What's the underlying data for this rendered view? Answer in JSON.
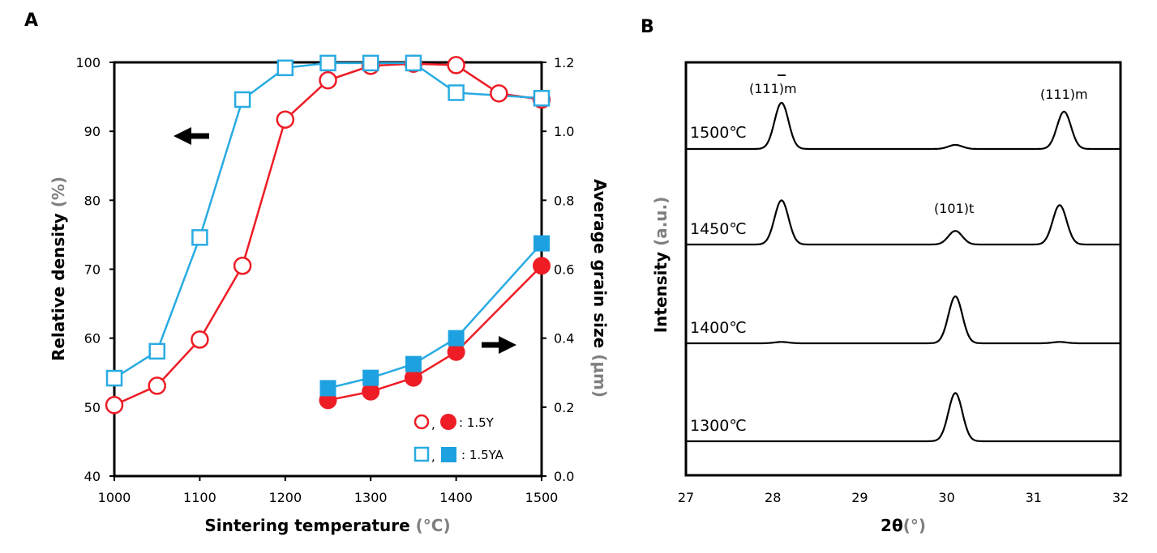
{
  "panels": {
    "a_label": "A",
    "b_label": "B"
  },
  "colors": {
    "red": "#ee1c25",
    "blue": "#29abe2",
    "square_fill": "#1da1e0",
    "axis": "#000000",
    "unit": "#7f7f7f"
  },
  "chart_data": [
    {
      "type": "line",
      "panel": "A",
      "xlabel": "Sintering temperature",
      "xlabel_unit": "(°C)",
      "ylabel": "Relative density",
      "ylabel_unit": "(%)",
      "y2label": "Average grain size",
      "y2label_unit": "(μm)",
      "xlim": [
        1000,
        1500
      ],
      "ylim": [
        40,
        100
      ],
      "y2lim": [
        0.0,
        1.2
      ],
      "x_ticks": [
        "1000",
        "1100",
        "1200",
        "1300",
        "1400",
        "1500"
      ],
      "y_ticks": [
        "40",
        "50",
        "60",
        "70",
        "80",
        "90",
        "100"
      ],
      "y2_ticks": [
        "0.0",
        "0.2",
        "0.4",
        "0.6",
        "0.8",
        "1.0",
        "1.2"
      ],
      "grid": false,
      "legend_position": "bottom-right",
      "legend": [
        {
          "sep": ",",
          "label": ": 1.5Y",
          "color": "red",
          "marker": "circle"
        },
        {
          "sep": ",",
          "label": ": 1.5YA",
          "color": "blue",
          "marker": "square"
        }
      ],
      "series": [
        {
          "name": "1.5Y",
          "axis": "left",
          "marker": "circle",
          "fill": "open",
          "color": "red",
          "x": [
            1000,
            1050,
            1100,
            1150,
            1200,
            1250,
            1300,
            1350,
            1400,
            1450,
            1500
          ],
          "values": [
            50.3,
            53.1,
            59.8,
            70.5,
            91.7,
            97.4,
            99.5,
            99.8,
            99.6,
            95.5,
            94.6
          ]
        },
        {
          "name": "1.5YA",
          "axis": "left",
          "marker": "square",
          "fill": "open",
          "color": "blue",
          "x": [
            1000,
            1050,
            1100,
            1150,
            1200,
            1250,
            1300,
            1350,
            1400,
            1450,
            1500
          ],
          "values": [
            54.2,
            58.1,
            74.6,
            94.6,
            99.2,
            99.9,
            99.9,
            99.9,
            95.6,
            null,
            94.8
          ]
        },
        {
          "name": "1.5Y",
          "axis": "right",
          "marker": "circle",
          "fill": "solid",
          "color": "red",
          "x": [
            1250,
            1300,
            1350,
            1400,
            1500
          ],
          "values": [
            0.22,
            0.245,
            0.285,
            0.36,
            0.61
          ]
        },
        {
          "name": "1.5YA",
          "axis": "right",
          "marker": "square",
          "fill": "solid",
          "color": "blue",
          "x": [
            1250,
            1300,
            1350,
            1400,
            1500
          ],
          "values": [
            0.255,
            0.285,
            0.325,
            0.4,
            0.675
          ]
        }
      ]
    },
    {
      "type": "line",
      "panel": "B",
      "xlabel": "2θ",
      "xlabel_unit": "(°)",
      "ylabel": "Intensity",
      "ylabel_unit": "(a.u.)",
      "xlim": [
        27,
        32
      ],
      "x_ticks": [
        "27",
        "28",
        "29",
        "30",
        "31",
        "32"
      ],
      "grid": false,
      "series": [
        {
          "name": "1500℃",
          "peaks": [
            {
              "x": 28.1,
              "h": 0.68
            },
            {
              "x": 30.1,
              "h": 0.06
            },
            {
              "x": 31.35,
              "h": 0.55
            }
          ]
        },
        {
          "name": "1450℃",
          "peaks": [
            {
              "x": 28.1,
              "h": 0.65
            },
            {
              "x": 30.1,
              "h": 0.2
            },
            {
              "x": 31.3,
              "h": 0.58
            }
          ]
        },
        {
          "name": "1400℃",
          "peaks": [
            {
              "x": 28.1,
              "h": 0.02
            },
            {
              "x": 30.1,
              "h": 0.69
            },
            {
              "x": 31.3,
              "h": 0.02
            }
          ]
        },
        {
          "name": "1300℃",
          "peaks": [
            {
              "x": 30.1,
              "h": 0.71
            }
          ]
        }
      ],
      "annotations": [
        {
          "text": "(111)m",
          "x": 28.1,
          "trace": "1500℃",
          "overbar_last_1": true
        },
        {
          "text": "(111)m",
          "x": 31.35,
          "trace": "1500℃"
        },
        {
          "text": "(101)t",
          "x": 30.1,
          "trace": "1450℃"
        }
      ]
    }
  ]
}
